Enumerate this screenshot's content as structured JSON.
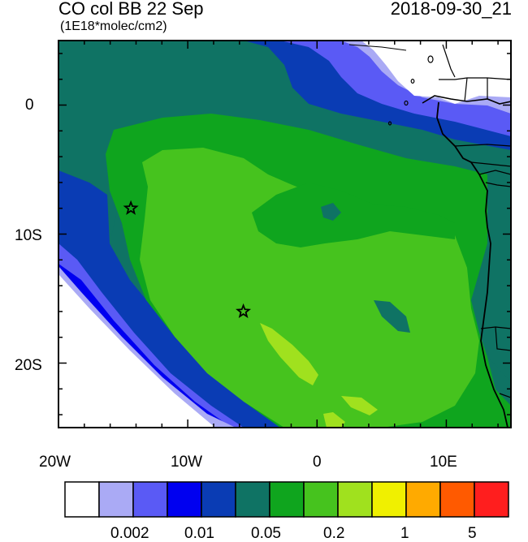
{
  "title": {
    "left": "CO col BB 22 Sep",
    "right": "2018-09-30_21",
    "units": "(1E18*molec/cm2)"
  },
  "map": {
    "lon_range": [
      -20,
      15
    ],
    "lat_range": [
      -25,
      5
    ],
    "x_tick_labels": [
      "20W",
      "10W",
      "0",
      "10E"
    ],
    "y_tick_labels": [
      "0",
      "10S",
      "20S"
    ],
    "markers": [
      {
        "lon": -14.4,
        "lat": -8.0,
        "symbol": "star"
      },
      {
        "lon": -5.7,
        "lat": -16.0,
        "symbol": "star"
      }
    ]
  },
  "colorbar": {
    "colors": [
      "#ffffff",
      "#aaaaf5",
      "#5a5af5",
      "#0000f0",
      "#0a3cb4",
      "#0f7364",
      "#0fa51e",
      "#46c31e",
      "#a0e11e",
      "#f0f000",
      "#ffaa00",
      "#ff5a00",
      "#ff1e1e"
    ],
    "labels": [
      "0.002",
      "0.01",
      "0.05",
      "0.2",
      "1",
      "5"
    ]
  }
}
